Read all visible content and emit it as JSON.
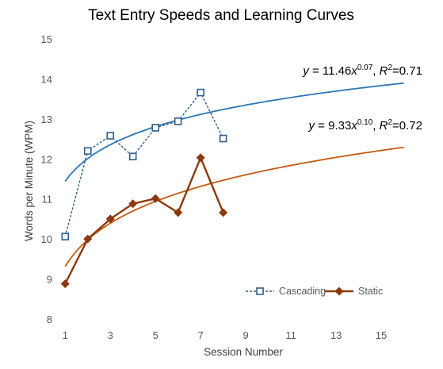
{
  "chart_data": {
    "type": "line",
    "title": "Text Entry Speeds and Learning Curves",
    "xlabel": "Session Number",
    "ylabel": "Words per Minute (WPM)",
    "xlim": [
      0.5,
      17
    ],
    "ylim": [
      8,
      15
    ],
    "x_ticks": [
      "1",
      "3",
      "5",
      "7",
      "9",
      "11",
      "13",
      "15"
    ],
    "y_ticks": [
      "8",
      "9",
      "10",
      "11",
      "12",
      "13",
      "14",
      "15"
    ],
    "grid": false,
    "legend_position": "bottom-right",
    "series": [
      {
        "name": "Cascading",
        "color": "#2e5f8a",
        "marker": "square-open",
        "line_style": "dashed",
        "x": [
          1,
          2,
          3,
          4,
          5,
          6,
          7,
          8
        ],
        "y": [
          10.08,
          12.22,
          12.6,
          12.08,
          12.8,
          12.96,
          13.68,
          12.53
        ]
      },
      {
        "name": "Static",
        "color": "#8b3a0f",
        "marker": "diamond-filled",
        "line_style": "solid",
        "x": [
          1,
          2,
          3,
          4,
          5,
          6,
          7,
          8
        ],
        "y": [
          8.9,
          10.02,
          10.52,
          10.9,
          11.03,
          10.68,
          12.05,
          10.68
        ]
      }
    ],
    "trendlines": [
      {
        "series": "Cascading",
        "color": "#2e75b6",
        "a": 11.46,
        "b": 0.07,
        "x_range": [
          1,
          16
        ],
        "label_y": "y",
        "label_eq": " = 11.46",
        "label_x": "x",
        "label_exp": "0.07",
        "label_r": "R",
        "label_r2": "2",
        "label_val": "=0.71"
      },
      {
        "series": "Static",
        "color": "#c55a11",
        "a": 9.33,
        "b": 0.1,
        "x_range": [
          1,
          16
        ],
        "label_y": "y",
        "label_eq": " = 9.33",
        "label_x": "x",
        "label_exp": "0.10",
        "label_r": "R",
        "label_r2": "2",
        "label_val": "=0.72"
      }
    ]
  }
}
